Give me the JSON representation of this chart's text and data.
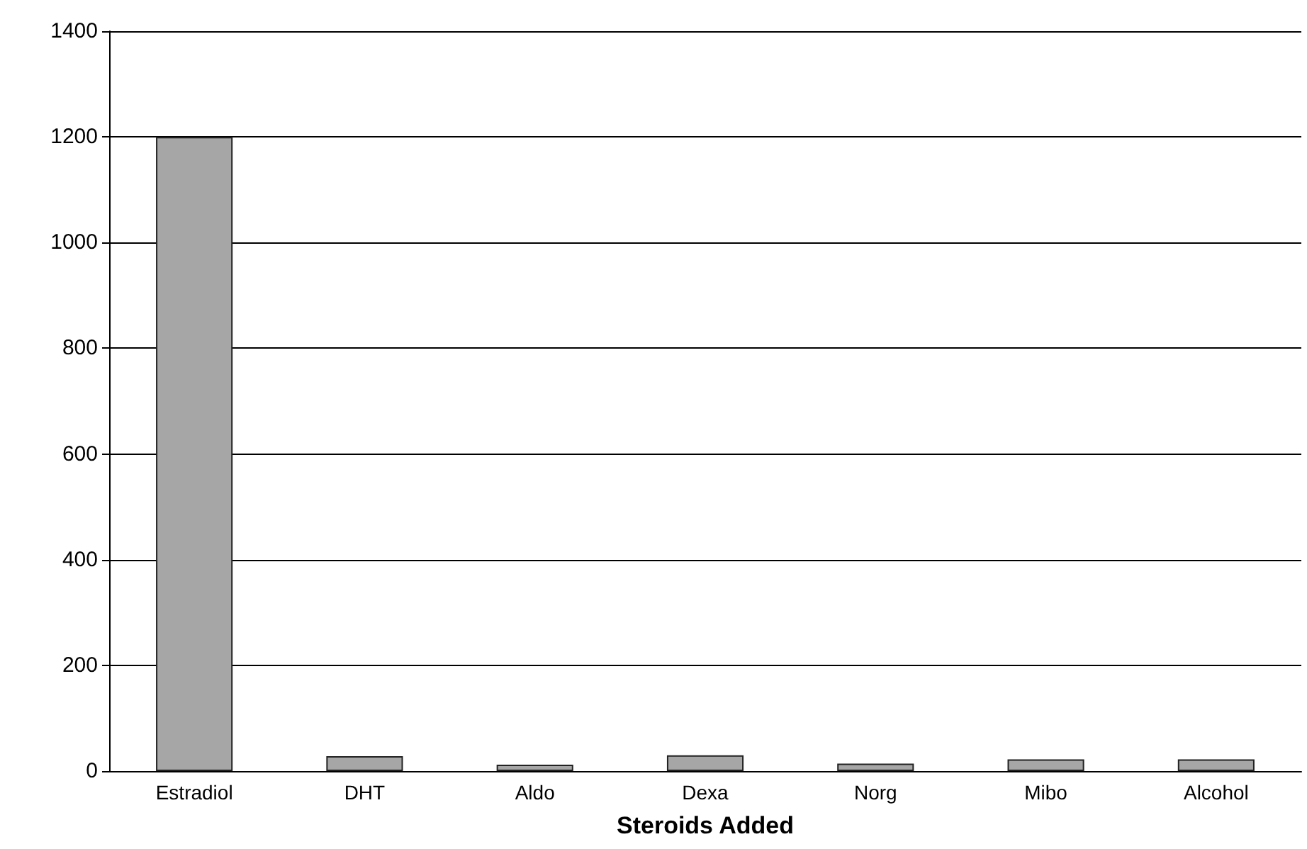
{
  "chart_data": {
    "type": "bar",
    "xlabel": "Steroids Added",
    "categories": [
      "Estradiol",
      "DHT",
      "Aldo",
      "Dexa",
      "Norg",
      "Mibo",
      "Alcohol"
    ],
    "values": [
      1200,
      28,
      12,
      30,
      14,
      22,
      22
    ],
    "color": "#a6a6a6",
    "ylim": [
      0,
      1400
    ],
    "yticks": [
      0,
      200,
      400,
      600,
      800,
      1000,
      1200,
      1400
    ],
    "grid": "y"
  }
}
